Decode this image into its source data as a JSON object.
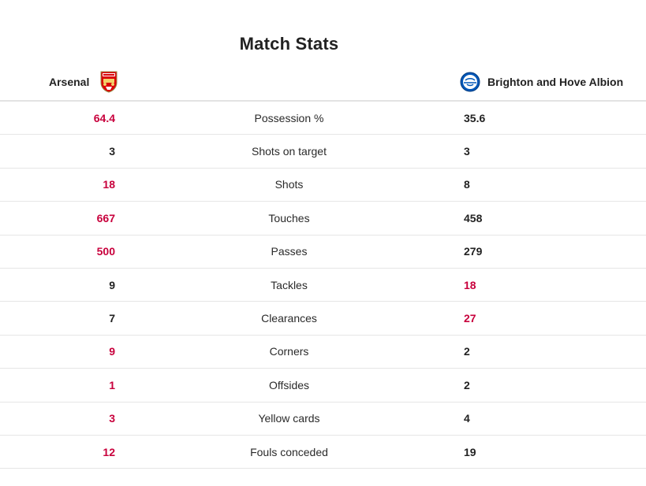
{
  "title": "Match Stats",
  "home": {
    "name": "Arsenal",
    "crest_icon": "arsenal-crest-icon",
    "color": "#db0007"
  },
  "away": {
    "name": "Brighton and Hove Albion",
    "crest_icon": "brighton-crest-icon",
    "color": "#0057b8"
  },
  "highlight_color": "#c8003c",
  "stats": [
    {
      "label": "Possession %",
      "home": "64.4",
      "away": "35.6",
      "leader": "home"
    },
    {
      "label": "Shots on target",
      "home": "3",
      "away": "3",
      "leader": "none"
    },
    {
      "label": "Shots",
      "home": "18",
      "away": "8",
      "leader": "home"
    },
    {
      "label": "Touches",
      "home": "667",
      "away": "458",
      "leader": "home"
    },
    {
      "label": "Passes",
      "home": "500",
      "away": "279",
      "leader": "home"
    },
    {
      "label": "Tackles",
      "home": "9",
      "away": "18",
      "leader": "away"
    },
    {
      "label": "Clearances",
      "home": "7",
      "away": "27",
      "leader": "away"
    },
    {
      "label": "Corners",
      "home": "9",
      "away": "2",
      "leader": "home"
    },
    {
      "label": "Offsides",
      "home": "1",
      "away": "2",
      "leader": "home"
    },
    {
      "label": "Yellow cards",
      "home": "3",
      "away": "4",
      "leader": "home"
    },
    {
      "label": "Fouls conceded",
      "home": "12",
      "away": "19",
      "leader": "home"
    }
  ]
}
